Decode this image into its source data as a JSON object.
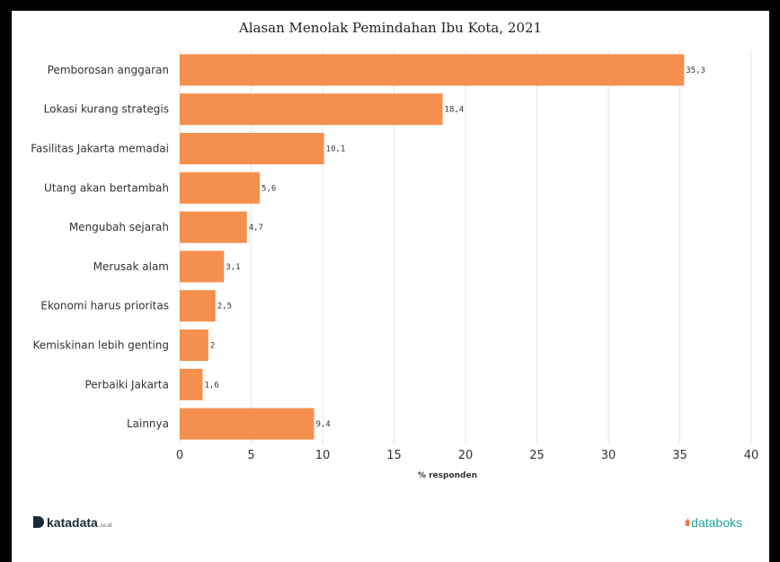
{
  "chart_data": {
    "type": "bar",
    "orientation": "horizontal",
    "title": "Alasan Menolak Pemindahan Ibu Kota, 2021",
    "xlabel": "% responden",
    "categories": [
      "Pemborosan anggaran",
      "Lokasi kurang strategis",
      "Fasilitas Jakarta memadai",
      "Utang akan bertambah",
      "Mengubah sejarah",
      "Merusak alam",
      "Ekonomi harus prioritas",
      "Kemiskinan lebih genting",
      "Perbaiki Jakarta",
      "Lainnya"
    ],
    "values": [
      35.3,
      18.4,
      10.1,
      5.6,
      4.7,
      3.1,
      2.5,
      2,
      1.6,
      9.4
    ],
    "value_labels": [
      "35,3",
      "18,4",
      "10,1",
      "5,6",
      "4,7",
      "3,1",
      "2,5",
      "2",
      "1,6",
      "9,4"
    ],
    "xlim": [
      0,
      40
    ],
    "xticks": [
      0,
      5,
      10,
      15,
      20,
      25,
      30,
      35,
      40
    ],
    "grid": true,
    "bar_color": "#f58f4e"
  },
  "footer": {
    "left_logo": "katadata",
    "left_logo_suffix": ".co.id",
    "right_logo": "databoks"
  },
  "colors": {
    "grid": "#e6e6e6",
    "text": "#333333"
  }
}
